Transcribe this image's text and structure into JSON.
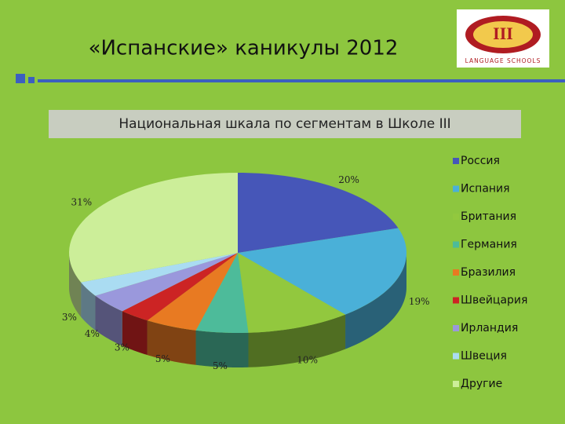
{
  "header": {
    "title": "«Испанские» каникулы 2012"
  },
  "logo": {
    "mark": "III",
    "text": "LANGUAGE SCHOOLS"
  },
  "chart_data": {
    "type": "pie",
    "title": "Национальная шкала по сегментам в Школе III",
    "categories": [
      "Россия",
      "Испания",
      "Британия",
      "Германия",
      "Бразилия",
      "Швейцария",
      "Ирландия",
      "Швеция",
      "Другие"
    ],
    "values": [
      20,
      19,
      10,
      5,
      5,
      3,
      4,
      3,
      31
    ],
    "value_labels": [
      "20%",
      "19%",
      "10%",
      "5%",
      "5%",
      "3%",
      "4%",
      "3%",
      "31%"
    ],
    "colors": [
      "#4656b8",
      "#4ab0d8",
      "#92c83e",
      "#4dbb9a",
      "#e87a22",
      "#cc2424",
      "#9a98dc",
      "#aadcf2",
      "#ccee99"
    ],
    "legend": "right"
  }
}
